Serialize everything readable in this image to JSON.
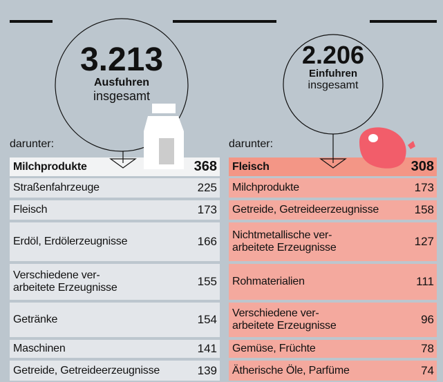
{
  "panels": [
    {
      "total": "3.213",
      "label": "Ausfuhren",
      "sublabel": "insgesamt",
      "intro": "darunter:",
      "rows": [
        {
          "label": "Milchprodukte",
          "value": 368
        },
        {
          "label": "Straßenfahrzeuge",
          "value": 225
        },
        {
          "label": "Fleisch",
          "value": 173
        },
        {
          "label": "Erdöl, Erdölerzeugnisse",
          "value": 166
        },
        {
          "label": "Verschiedene ver-\narbeitete Erzeugnisse",
          "value": 155
        },
        {
          "label": "Getränke",
          "value": 154
        },
        {
          "label": "Maschinen",
          "value": 141
        },
        {
          "label": "Getreide, Getreideerzeugnisse",
          "value": 139
        }
      ]
    },
    {
      "total": "2.206",
      "label": "Einfuhren",
      "sublabel": "insgesamt",
      "intro": "darunter:",
      "rows": [
        {
          "label": "Fleisch",
          "value": 308
        },
        {
          "label": "Milchprodukte",
          "value": 173
        },
        {
          "label": "Getreide, Getreideerzeugnisse",
          "value": 158
        },
        {
          "label": "Nichtmetallische ver-\narbeitete Erzeugnisse",
          "value": 127
        },
        {
          "label": "Rohmaterialien",
          "value": 111
        },
        {
          "label": "Verschiedene ver-\narbeitete Erzeugnisse",
          "value": 96
        },
        {
          "label": "Gemüse, Früchte",
          "value": 78
        },
        {
          "label": "Ätherische Öle, Parfüme",
          "value": 74
        }
      ]
    }
  ]
}
